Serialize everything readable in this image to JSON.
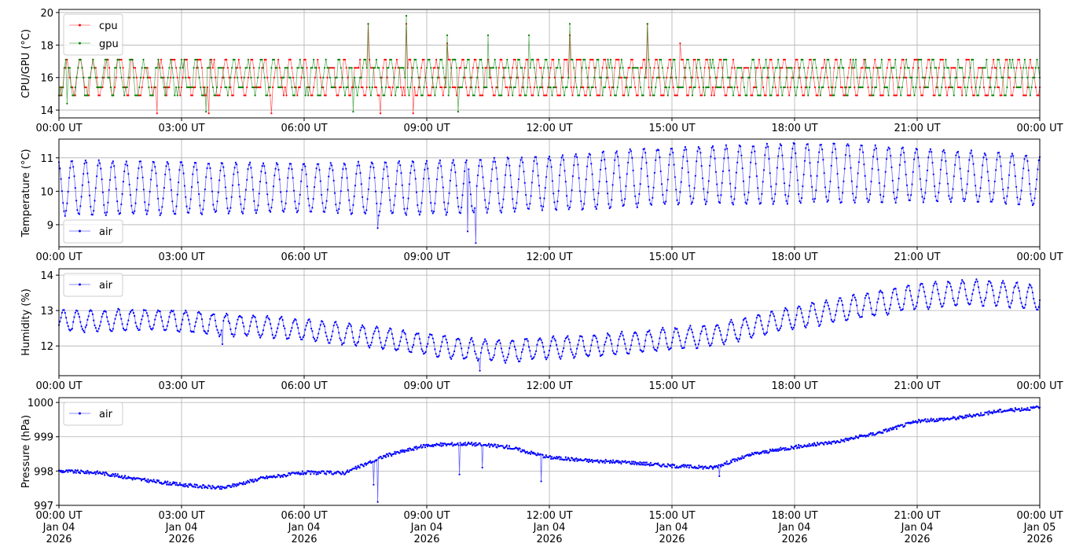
{
  "chart_data": [
    {
      "type": "line",
      "ylabel": "CPU/GPU (°C)",
      "ylim": [
        13.52,
        20.19
      ],
      "yticks": [
        14,
        16,
        18,
        20
      ],
      "xlim_hours": [
        0,
        24
      ],
      "xtick_labels": [
        "00:00 UT",
        "03:00 UT",
        "06:00 UT",
        "09:00 UT",
        "12:00 UT",
        "15:00 UT",
        "18:00 UT",
        "21:00 UT",
        "00:00 UT"
      ],
      "grid": true,
      "legend": "top-left",
      "series": [
        {
          "name": "cpu",
          "color": "#ff0000",
          "levels": [
            14.9,
            15.4,
            16.0,
            16.6,
            17.1
          ],
          "mean": 16.0,
          "oscillation_amplitude": 1.1,
          "period_minutes": 19,
          "sample_minutes": 2,
          "seed": 7,
          "spikes": [
            [
              2.4,
              13.8
            ],
            [
              3.65,
              13.8
            ],
            [
              5.2,
              13.8
            ],
            [
              7.55,
              19.3
            ],
            [
              7.85,
              13.8
            ],
            [
              8.5,
              19.3
            ],
            [
              8.65,
              13.8
            ],
            [
              9.5,
              18.1
            ],
            [
              12.5,
              18.6
            ],
            [
              14.4,
              19.3
            ],
            [
              15.2,
              18.1
            ]
          ]
        },
        {
          "name": "gpu",
          "color": "#008000",
          "levels": [
            14.9,
            15.4,
            16.0,
            16.6,
            17.1
          ],
          "mean": 16.0,
          "oscillation_amplitude": 1.0,
          "period_minutes": 19,
          "sample_minutes": 2,
          "seed": 13,
          "spikes": [
            [
              0.2,
              14.4
            ],
            [
              3.6,
              13.9
            ],
            [
              7.2,
              13.9
            ],
            [
              7.55,
              19.3
            ],
            [
              8.5,
              19.8
            ],
            [
              9.5,
              18.6
            ],
            [
              10.5,
              18.6
            ],
            [
              11.5,
              18.6
            ],
            [
              12.5,
              19.3
            ],
            [
              14.4,
              19.3
            ],
            [
              9.75,
              13.9
            ]
          ]
        }
      ]
    },
    {
      "type": "line",
      "ylabel": "Temperature (°C)",
      "ylim": [
        8.34,
        11.56
      ],
      "yticks": [
        9,
        10,
        11
      ],
      "xlim_hours": [
        0,
        24
      ],
      "xtick_labels": [
        "00:00 UT",
        "03:00 UT",
        "06:00 UT",
        "09:00 UT",
        "12:00 UT",
        "15:00 UT",
        "18:00 UT",
        "21:00 UT",
        "00:00 UT"
      ],
      "grid": true,
      "legend": "bottom-left",
      "series": [
        {
          "name": "air",
          "color": "#0000ff",
          "period_minutes": 20,
          "sample_minutes": 1.5,
          "seed": 3,
          "hourly_mean": [
            10.1,
            10.1,
            10.1,
            10.1,
            10.1,
            10.1,
            10.1,
            10.1,
            10.1,
            10.1,
            10.15,
            10.2,
            10.25,
            10.3,
            10.4,
            10.45,
            10.5,
            10.5,
            10.55,
            10.55,
            10.5,
            10.5,
            10.45,
            10.4,
            10.3
          ],
          "hourly_amplitude": [
            0.8,
            0.8,
            0.8,
            0.8,
            0.75,
            0.75,
            0.75,
            0.75,
            0.8,
            0.8,
            0.8,
            0.8,
            0.8,
            0.85,
            0.85,
            0.85,
            0.85,
            0.9,
            0.9,
            0.9,
            0.85,
            0.8,
            0.75,
            0.75,
            0.75
          ],
          "spikes": [
            [
              7.8,
              8.9
            ],
            [
              10.0,
              8.8
            ],
            [
              10.2,
              8.45
            ]
          ]
        }
      ]
    },
    {
      "type": "line",
      "ylabel": "Humidity (%)",
      "ylim": [
        11.16,
        14.18
      ],
      "yticks": [
        12,
        13,
        14
      ],
      "xlim_hours": [
        0,
        24
      ],
      "xtick_labels": [
        "00:00 UT",
        "03:00 UT",
        "06:00 UT",
        "09:00 UT",
        "12:00 UT",
        "15:00 UT",
        "18:00 UT",
        "21:00 UT",
        "00:00 UT"
      ],
      "grid": true,
      "legend": "top-left",
      "series": [
        {
          "name": "air",
          "color": "#0000ff",
          "period_minutes": 20,
          "sample_minutes": 1.5,
          "seed": 5,
          "hourly_mean": [
            12.7,
            12.7,
            12.75,
            12.7,
            12.6,
            12.55,
            12.45,
            12.35,
            12.2,
            12.05,
            11.9,
            11.85,
            11.95,
            12.0,
            12.1,
            12.2,
            12.3,
            12.55,
            12.8,
            13.0,
            13.2,
            13.4,
            13.5,
            13.5,
            13.35
          ],
          "hourly_amplitude": [
            0.3,
            0.3,
            0.3,
            0.3,
            0.3,
            0.3,
            0.3,
            0.3,
            0.3,
            0.3,
            0.3,
            0.3,
            0.3,
            0.3,
            0.3,
            0.3,
            0.3,
            0.3,
            0.3,
            0.35,
            0.35,
            0.35,
            0.35,
            0.35,
            0.35
          ],
          "spikes": [
            [
              4.0,
              12.05
            ],
            [
              10.3,
              11.3
            ]
          ]
        }
      ]
    },
    {
      "type": "line",
      "ylabel": "Pressure (hPa)",
      "ylim": [
        997.0,
        1000.14
      ],
      "yticks": [
        997,
        998,
        999,
        1000
      ],
      "xlim_hours": [
        0,
        24
      ],
      "xtick_labels": [
        "00:00 UT\nJan 04\n2026",
        "03:00 UT\nJan 04\n2026",
        "06:00 UT\nJan 04\n2026",
        "09:00 UT\nJan 04\n2026",
        "12:00 UT\nJan 04\n2026",
        "15:00 UT\nJan 04\n2026",
        "18:00 UT\nJan 04\n2026",
        "21:00 UT\nJan 04\n2026",
        "00:00 UT\nJan 05\n2026"
      ],
      "grid": true,
      "legend": "top-left",
      "series": [
        {
          "name": "air",
          "color": "#0000ff",
          "sample_minutes": 1.2,
          "seed": 9,
          "noise": 0.05,
          "hourly_mean": [
            998.0,
            997.95,
            997.75,
            997.6,
            997.5,
            997.8,
            997.95,
            997.95,
            998.45,
            998.75,
            998.8,
            998.7,
            998.4,
            998.3,
            998.25,
            998.15,
            998.1,
            998.5,
            998.7,
            998.85,
            999.1,
            999.45,
            999.55,
            999.75,
            999.85
          ],
          "spikes": [
            [
              7.7,
              997.6
            ],
            [
              7.8,
              997.1
            ],
            [
              9.8,
              997.9
            ],
            [
              10.35,
              998.1
            ],
            [
              11.8,
              997.7
            ],
            [
              16.15,
              997.85
            ]
          ]
        }
      ]
    }
  ]
}
